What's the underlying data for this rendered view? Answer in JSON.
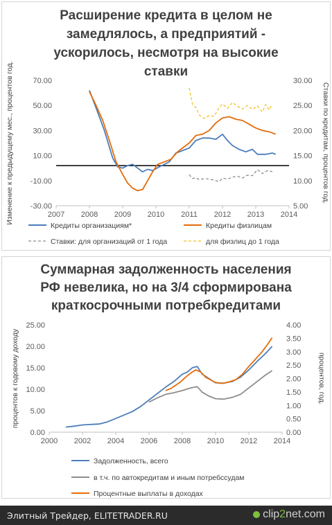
{
  "chart1": {
    "title_lines": [
      "Расширение кредита в целом не",
      "замедлялось, а предприятий -",
      "ускорилось, несмотря на высокие",
      "ставки"
    ],
    "ylabel_left": "Изменение к предыдущему мес., процентов год.",
    "ylabel_right": "Ставки по кредитам, процентов год."
  },
  "chart2": {
    "title_lines": [
      "Суммарная задолженность населения",
      "РФ невелика, но на 3/4 сформирована",
      "краткосрочными потребкредитами"
    ],
    "ylabel_left": "процентов к годовому доходу",
    "ylabel_right": "процентов, год."
  },
  "chart_data": [
    {
      "type": "line",
      "xlim": [
        2007,
        2014
      ],
      "x_ticks": [
        "2007",
        "2008",
        "2009",
        "2010",
        "2011",
        "2012",
        "2013",
        "2014"
      ],
      "y_left": {
        "ylim": [
          -30,
          70
        ],
        "ticks": [
          "70.00",
          "50.00",
          "30.00",
          "10.00",
          "-10.00",
          "-30.00"
        ]
      },
      "y_right": {
        "ylim": [
          5,
          30
        ],
        "ticks": [
          "30.00",
          "25.00",
          "20.00",
          "15.00",
          "10.00",
          "5.00"
        ]
      },
      "reference_line_y": 2,
      "series": [
        {
          "name": "Кредиты организациям*",
          "axis": "left",
          "color": "#4a7ebb",
          "dash": "solid",
          "points": [
            [
              2008.0,
              62
            ],
            [
              2008.2,
              48
            ],
            [
              2008.45,
              30
            ],
            [
              2008.7,
              8
            ],
            [
              2008.85,
              1
            ],
            [
              2009.0,
              0
            ],
            [
              2009.15,
              2
            ],
            [
              2009.3,
              3
            ],
            [
              2009.45,
              0
            ],
            [
              2009.6,
              -3
            ],
            [
              2009.75,
              -1
            ],
            [
              2009.9,
              -2
            ],
            [
              2010.1,
              1
            ],
            [
              2010.25,
              3
            ],
            [
              2010.4,
              5
            ],
            [
              2010.6,
              12
            ],
            [
              2010.8,
              14
            ],
            [
              2011.0,
              16
            ],
            [
              2011.2,
              22
            ],
            [
              2011.4,
              24
            ],
            [
              2011.6,
              24
            ],
            [
              2011.8,
              23
            ],
            [
              2012.0,
              27
            ],
            [
              2012.15,
              22
            ],
            [
              2012.3,
              18
            ],
            [
              2012.5,
              15
            ],
            [
              2012.7,
              13
            ],
            [
              2012.9,
              15
            ],
            [
              2013.05,
              11
            ],
            [
              2013.3,
              11
            ],
            [
              2013.5,
              12
            ],
            [
              2013.6,
              11
            ]
          ]
        },
        {
          "name": "Кредиты физлицам",
          "axis": "left",
          "color": "#e46c0a",
          "dash": "solid",
          "points": [
            [
              2008.0,
              61
            ],
            [
              2008.2,
              50
            ],
            [
              2008.4,
              38
            ],
            [
              2008.6,
              22
            ],
            [
              2008.8,
              5
            ],
            [
              2009.0,
              -5
            ],
            [
              2009.15,
              -12
            ],
            [
              2009.3,
              -16
            ],
            [
              2009.45,
              -18
            ],
            [
              2009.6,
              -17
            ],
            [
              2009.75,
              -10
            ],
            [
              2009.9,
              -3
            ],
            [
              2010.05,
              3
            ],
            [
              2010.25,
              5
            ],
            [
              2010.45,
              7
            ],
            [
              2010.65,
              13
            ],
            [
              2010.85,
              17
            ],
            [
              2011.0,
              20
            ],
            [
              2011.2,
              26
            ],
            [
              2011.4,
              27
            ],
            [
              2011.6,
              30
            ],
            [
              2011.8,
              36
            ],
            [
              2012.0,
              40
            ],
            [
              2012.2,
              41
            ],
            [
              2012.4,
              39
            ],
            [
              2012.6,
              38
            ],
            [
              2012.8,
              35
            ],
            [
              2013.0,
              32
            ],
            [
              2013.2,
              30
            ],
            [
              2013.4,
              29
            ],
            [
              2013.6,
              27
            ]
          ]
        },
        {
          "name": "Ставки: для организаций от 1 года",
          "axis": "right",
          "color": "#8c8c8c",
          "dash": "4,3",
          "points": [
            [
              2011.0,
              11.2
            ],
            [
              2011.1,
              10.4
            ],
            [
              2011.2,
              10.6
            ],
            [
              2011.3,
              10.2
            ],
            [
              2011.45,
              10.4
            ],
            [
              2011.6,
              10.3
            ],
            [
              2011.75,
              10.1
            ],
            [
              2011.9,
              9.8
            ],
            [
              2012.0,
              10.5
            ],
            [
              2012.15,
              10.3
            ],
            [
              2012.3,
              10.7
            ],
            [
              2012.45,
              10.9
            ],
            [
              2012.6,
              10.5
            ],
            [
              2012.75,
              11.1
            ],
            [
              2012.9,
              11.0
            ],
            [
              2013.05,
              12.2
            ],
            [
              2013.2,
              11.4
            ],
            [
              2013.35,
              12.0
            ],
            [
              2013.5,
              11.8
            ]
          ]
        },
        {
          "name": "для физлиц до 1 года",
          "axis": "right",
          "color": "#f0c020",
          "dash": "4,3",
          "points": [
            [
              2011.0,
              28.5
            ],
            [
              2011.1,
              25.2
            ],
            [
              2011.2,
              24.6
            ],
            [
              2011.3,
              23.1
            ],
            [
              2011.45,
              22.4
            ],
            [
              2011.6,
              23.0
            ],
            [
              2011.75,
              22.8
            ],
            [
              2011.9,
              24.6
            ],
            [
              2012.0,
              25.3
            ],
            [
              2012.15,
              24.4
            ],
            [
              2012.3,
              25.6
            ],
            [
              2012.45,
              24.8
            ],
            [
              2012.6,
              24.3
            ],
            [
              2012.75,
              25.0
            ],
            [
              2012.9,
              24.2
            ],
            [
              2013.05,
              24.9
            ],
            [
              2013.2,
              23.7
            ],
            [
              2013.3,
              25.2
            ],
            [
              2013.4,
              24.1
            ],
            [
              2013.5,
              25.3
            ]
          ]
        }
      ]
    },
    {
      "type": "line",
      "xlim": [
        2000,
        2014
      ],
      "x_ticks": [
        "2000",
        "2002",
        "2004",
        "2006",
        "2008",
        "2010",
        "2012",
        "2014"
      ],
      "y_left": {
        "ylim": [
          0,
          25
        ],
        "ticks": [
          "25.00",
          "20.00",
          "15.00",
          "10.00",
          "5.00",
          "0.00"
        ]
      },
      "y_right": {
        "ylim": [
          0,
          4
        ],
        "ticks": [
          "4.00",
          "3.50",
          "3.00",
          "2.50",
          "2.00",
          "1.50",
          "1.00",
          "0.50",
          "0.00"
        ]
      },
      "series": [
        {
          "name": "Задолженность, всего",
          "axis": "left",
          "color": "#4a7ebb",
          "dash": "solid",
          "points": [
            [
              2001.0,
              1.2
            ],
            [
              2001.5,
              1.4
            ],
            [
              2002.0,
              1.7
            ],
            [
              2002.5,
              1.8
            ],
            [
              2003.0,
              1.9
            ],
            [
              2003.5,
              2.4
            ],
            [
              2004.0,
              3.2
            ],
            [
              2004.5,
              4.0
            ],
            [
              2005.0,
              4.8
            ],
            [
              2005.5,
              6.0
            ],
            [
              2006.0,
              7.5
            ],
            [
              2006.5,
              9.0
            ],
            [
              2007.0,
              10.5
            ],
            [
              2007.5,
              11.8
            ],
            [
              2008.0,
              13.5
            ],
            [
              2008.3,
              14.0
            ],
            [
              2008.6,
              15.0
            ],
            [
              2008.9,
              15.3
            ],
            [
              2009.2,
              13.5
            ],
            [
              2009.6,
              12.5
            ],
            [
              2010.0,
              11.5
            ],
            [
              2010.5,
              11.4
            ],
            [
              2011.0,
              11.8
            ],
            [
              2011.5,
              12.8
            ],
            [
              2012.0,
              14.5
            ],
            [
              2012.5,
              16.5
            ],
            [
              2013.0,
              18.3
            ],
            [
              2013.4,
              20.0
            ]
          ]
        },
        {
          "name": "в т.ч. по автокредитам и иным потребссудам",
          "axis": "left",
          "color": "#8c8c8c",
          "dash": "solid",
          "points": [
            [
              2006.0,
              7.0
            ],
            [
              2006.5,
              8.0
            ],
            [
              2007.0,
              8.8
            ],
            [
              2007.5,
              9.2
            ],
            [
              2008.0,
              9.7
            ],
            [
              2008.5,
              10.3
            ],
            [
              2008.9,
              10.6
            ],
            [
              2009.2,
              9.3
            ],
            [
              2009.6,
              8.4
            ],
            [
              2010.0,
              7.8
            ],
            [
              2010.5,
              7.7
            ],
            [
              2011.0,
              8.1
            ],
            [
              2011.5,
              8.8
            ],
            [
              2012.0,
              10.3
            ],
            [
              2012.5,
              11.8
            ],
            [
              2013.0,
              13.3
            ],
            [
              2013.4,
              14.3
            ]
          ]
        },
        {
          "name": "Процентные выплаты в доходах",
          "axis": "right",
          "color": "#e46c0a",
          "dash": "solid",
          "points": [
            [
              2007.0,
              1.55
            ],
            [
              2007.3,
              1.62
            ],
            [
              2007.6,
              1.75
            ],
            [
              2007.9,
              1.88
            ],
            [
              2008.2,
              2.05
            ],
            [
              2008.5,
              2.2
            ],
            [
              2008.8,
              2.32
            ],
            [
              2009.1,
              2.25
            ],
            [
              2009.4,
              2.05
            ],
            [
              2009.7,
              1.95
            ],
            [
              2010.0,
              1.85
            ],
            [
              2010.4,
              1.82
            ],
            [
              2010.8,
              1.87
            ],
            [
              2011.2,
              1.95
            ],
            [
              2011.6,
              2.15
            ],
            [
              2012.0,
              2.45
            ],
            [
              2012.4,
              2.72
            ],
            [
              2012.8,
              3.0
            ],
            [
              2013.1,
              3.25
            ],
            [
              2013.4,
              3.52
            ]
          ]
        }
      ]
    }
  ],
  "footer": {
    "left_text": "Элитный Трейдер, ELITETRADER.RU",
    "logo_clip": "clip",
    "logo_two": "2",
    "logo_net": "net",
    "logo_com": ".com"
  }
}
